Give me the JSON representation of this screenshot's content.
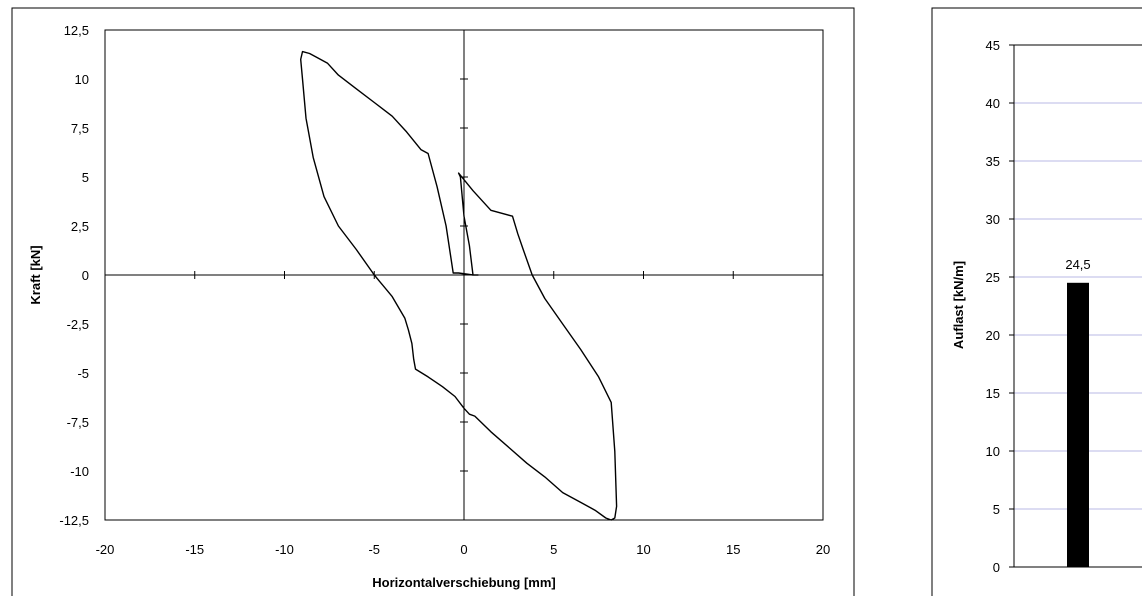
{
  "chart_data": [
    {
      "type": "line",
      "title": "",
      "xlabel": "Horizontalverschiebung [mm]",
      "ylabel": "Kraft [kN]",
      "xlim": [
        -20,
        20
      ],
      "ylim": [
        -12.5,
        12.5
      ],
      "x_ticks": [
        -20,
        -15,
        -10,
        -5,
        0,
        5,
        10,
        15,
        20
      ],
      "x_tick_labels": [
        "-20",
        "-15",
        "-10",
        "-5",
        "0",
        "5",
        "10",
        "15",
        "20"
      ],
      "y_ticks": [
        12.5,
        10,
        7.5,
        5,
        2.5,
        0,
        -2.5,
        -5,
        -7.5,
        -10,
        -12.5
      ],
      "y_tick_labels": [
        "12,5",
        "10",
        "7,5",
        "5",
        "2,5",
        "0",
        "-2,5",
        "-5",
        "-7,5",
        "-10",
        "-12,5"
      ],
      "grid": false,
      "legend": "none",
      "line_color": "#000000",
      "series": [
        {
          "x": [
            0.5,
            -0.3,
            -0.6,
            -1.0,
            -1.5,
            -2.0,
            -2.4,
            -3.2,
            -4.0,
            -5.0,
            -6.0,
            -7.0,
            -7.6,
            -8.2,
            -8.6,
            -9.0,
            -9.1,
            -9.0,
            -8.8,
            -8.4,
            -7.8,
            -7.0,
            -6.0,
            -5.0,
            -4.0,
            -3.3,
            -3.1,
            -2.9,
            -2.8,
            -2.7,
            -2.0,
            -1.2,
            -0.5,
            0.0,
            0.3,
            0.6,
            1.5,
            2.5,
            3.5,
            4.5,
            5.5,
            6.5,
            7.3,
            7.9,
            8.2,
            8.4,
            8.5,
            8.4,
            8.2,
            7.5,
            6.5,
            5.5,
            4.5,
            3.8,
            3.3,
            3.0,
            2.7,
            1.5,
            0.5,
            -0.3,
            -0.2,
            0.0,
            0.3,
            0.5,
            0.8
          ],
          "y": [
            0.0,
            0.1,
            0.1,
            2.5,
            4.5,
            6.2,
            6.4,
            7.3,
            8.1,
            8.8,
            9.5,
            10.2,
            10.8,
            11.1,
            11.3,
            11.4,
            11.0,
            10.0,
            8.0,
            6.0,
            4.0,
            2.5,
            1.3,
            0.0,
            -1.1,
            -2.2,
            -2.8,
            -3.5,
            -4.3,
            -4.8,
            -5.2,
            -5.7,
            -6.2,
            -6.8,
            -7.1,
            -7.2,
            -8.0,
            -8.8,
            -9.6,
            -10.3,
            -11.1,
            -11.6,
            -12.0,
            -12.4,
            -12.5,
            -12.4,
            -11.8,
            -9.0,
            -6.5,
            -5.2,
            -3.8,
            -2.5,
            -1.2,
            0.0,
            1.3,
            2.1,
            3.0,
            3.3,
            4.3,
            5.2,
            5.0,
            3.0,
            1.5,
            0.0,
            0.0
          ]
        }
      ]
    },
    {
      "type": "bar",
      "title": "",
      "xlabel": "",
      "ylabel": "Auflast [kN/m]",
      "ylim": [
        0,
        45
      ],
      "y_ticks": [
        0,
        5,
        10,
        15,
        20,
        25,
        30,
        35,
        40,
        45
      ],
      "grid": true,
      "legend": "none",
      "bar_color": "#000000",
      "grid_color": "#b8b8e6",
      "categories": [
        ""
      ],
      "values": [
        24.5
      ],
      "data_labels": [
        "24,5"
      ]
    }
  ]
}
